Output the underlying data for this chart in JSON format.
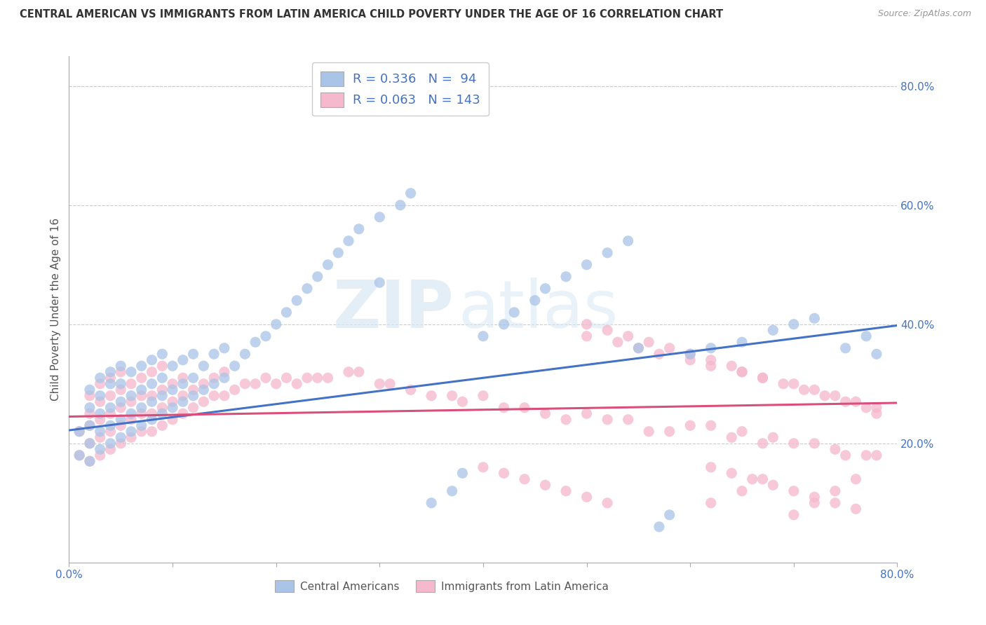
{
  "title": "CENTRAL AMERICAN VS IMMIGRANTS FROM LATIN AMERICA CHILD POVERTY UNDER THE AGE OF 16 CORRELATION CHART",
  "source": "Source: ZipAtlas.com",
  "ylabel": "Child Poverty Under the Age of 16",
  "xlim": [
    0.0,
    0.8
  ],
  "ylim": [
    0.0,
    0.85
  ],
  "blue_R": 0.336,
  "blue_N": 94,
  "pink_R": 0.063,
  "pink_N": 143,
  "blue_color": "#aac4e8",
  "pink_color": "#f5b8cc",
  "blue_line_color": "#4472c4",
  "pink_line_color": "#d94f7a",
  "watermark_zip": "ZIP",
  "watermark_atlas": "atlas",
  "legend_label_blue": "Central Americans",
  "legend_label_pink": "Immigrants from Latin America",
  "blue_scatter_x": [
    0.01,
    0.01,
    0.02,
    0.02,
    0.02,
    0.02,
    0.02,
    0.03,
    0.03,
    0.03,
    0.03,
    0.03,
    0.04,
    0.04,
    0.04,
    0.04,
    0.04,
    0.05,
    0.05,
    0.05,
    0.05,
    0.05,
    0.06,
    0.06,
    0.06,
    0.06,
    0.07,
    0.07,
    0.07,
    0.07,
    0.08,
    0.08,
    0.08,
    0.08,
    0.09,
    0.09,
    0.09,
    0.09,
    0.1,
    0.1,
    0.1,
    0.11,
    0.11,
    0.11,
    0.12,
    0.12,
    0.12,
    0.13,
    0.13,
    0.14,
    0.14,
    0.15,
    0.15,
    0.16,
    0.17,
    0.18,
    0.19,
    0.2,
    0.21,
    0.22,
    0.23,
    0.24,
    0.25,
    0.26,
    0.27,
    0.28,
    0.3,
    0.3,
    0.32,
    0.33,
    0.35,
    0.37,
    0.38,
    0.4,
    0.42,
    0.43,
    0.45,
    0.46,
    0.48,
    0.5,
    0.52,
    0.54,
    0.55,
    0.57,
    0.58,
    0.6,
    0.62,
    0.65,
    0.68,
    0.7,
    0.72,
    0.75,
    0.77,
    0.78
  ],
  "blue_scatter_y": [
    0.18,
    0.22,
    0.17,
    0.2,
    0.23,
    0.26,
    0.29,
    0.19,
    0.22,
    0.25,
    0.28,
    0.31,
    0.2,
    0.23,
    0.26,
    0.3,
    0.32,
    0.21,
    0.24,
    0.27,
    0.3,
    0.33,
    0.22,
    0.25,
    0.28,
    0.32,
    0.23,
    0.26,
    0.29,
    0.33,
    0.24,
    0.27,
    0.3,
    0.34,
    0.25,
    0.28,
    0.31,
    0.35,
    0.26,
    0.29,
    0.33,
    0.27,
    0.3,
    0.34,
    0.28,
    0.31,
    0.35,
    0.29,
    0.33,
    0.3,
    0.35,
    0.31,
    0.36,
    0.33,
    0.35,
    0.37,
    0.38,
    0.4,
    0.42,
    0.44,
    0.46,
    0.48,
    0.5,
    0.52,
    0.54,
    0.56,
    0.47,
    0.58,
    0.6,
    0.62,
    0.1,
    0.12,
    0.15,
    0.38,
    0.4,
    0.42,
    0.44,
    0.46,
    0.48,
    0.5,
    0.52,
    0.54,
    0.36,
    0.06,
    0.08,
    0.35,
    0.36,
    0.37,
    0.39,
    0.4,
    0.41,
    0.36,
    0.38,
    0.35
  ],
  "pink_scatter_x": [
    0.01,
    0.01,
    0.02,
    0.02,
    0.02,
    0.02,
    0.02,
    0.03,
    0.03,
    0.03,
    0.03,
    0.03,
    0.04,
    0.04,
    0.04,
    0.04,
    0.04,
    0.05,
    0.05,
    0.05,
    0.05,
    0.05,
    0.06,
    0.06,
    0.06,
    0.06,
    0.07,
    0.07,
    0.07,
    0.07,
    0.08,
    0.08,
    0.08,
    0.08,
    0.09,
    0.09,
    0.09,
    0.09,
    0.1,
    0.1,
    0.1,
    0.11,
    0.11,
    0.11,
    0.12,
    0.12,
    0.13,
    0.13,
    0.14,
    0.14,
    0.15,
    0.15,
    0.16,
    0.17,
    0.18,
    0.19,
    0.2,
    0.21,
    0.22,
    0.23,
    0.24,
    0.25,
    0.27,
    0.28,
    0.3,
    0.31,
    0.33,
    0.35,
    0.37,
    0.38,
    0.4,
    0.42,
    0.44,
    0.46,
    0.48,
    0.5,
    0.52,
    0.54,
    0.56,
    0.58,
    0.6,
    0.62,
    0.64,
    0.65,
    0.67,
    0.68,
    0.7,
    0.72,
    0.74,
    0.75,
    0.77,
    0.78,
    0.5,
    0.53,
    0.55,
    0.57,
    0.6,
    0.62,
    0.65,
    0.67,
    0.7,
    0.72,
    0.74,
    0.76,
    0.78,
    0.62,
    0.65,
    0.67,
    0.7,
    0.72,
    0.74,
    0.76,
    0.62,
    0.64,
    0.66,
    0.68,
    0.7,
    0.72,
    0.74,
    0.76,
    0.5,
    0.52,
    0.54,
    0.56,
    0.58,
    0.6,
    0.62,
    0.64,
    0.65,
    0.67,
    0.69,
    0.71,
    0.73,
    0.75,
    0.77,
    0.78,
    0.4,
    0.42,
    0.44,
    0.46,
    0.48,
    0.5,
    0.52
  ],
  "pink_scatter_y": [
    0.18,
    0.22,
    0.17,
    0.2,
    0.23,
    0.25,
    0.28,
    0.18,
    0.21,
    0.24,
    0.27,
    0.3,
    0.19,
    0.22,
    0.25,
    0.28,
    0.31,
    0.2,
    0.23,
    0.26,
    0.29,
    0.32,
    0.21,
    0.24,
    0.27,
    0.3,
    0.22,
    0.25,
    0.28,
    0.31,
    0.22,
    0.25,
    0.28,
    0.32,
    0.23,
    0.26,
    0.29,
    0.33,
    0.24,
    0.27,
    0.3,
    0.25,
    0.28,
    0.31,
    0.26,
    0.29,
    0.27,
    0.3,
    0.28,
    0.31,
    0.28,
    0.32,
    0.29,
    0.3,
    0.3,
    0.31,
    0.3,
    0.31,
    0.3,
    0.31,
    0.31,
    0.31,
    0.32,
    0.32,
    0.3,
    0.3,
    0.29,
    0.28,
    0.28,
    0.27,
    0.28,
    0.26,
    0.26,
    0.25,
    0.24,
    0.25,
    0.24,
    0.24,
    0.22,
    0.22,
    0.23,
    0.23,
    0.21,
    0.22,
    0.2,
    0.21,
    0.2,
    0.2,
    0.19,
    0.18,
    0.18,
    0.18,
    0.38,
    0.37,
    0.36,
    0.35,
    0.34,
    0.33,
    0.32,
    0.31,
    0.3,
    0.29,
    0.28,
    0.27,
    0.26,
    0.1,
    0.12,
    0.14,
    0.08,
    0.1,
    0.12,
    0.14,
    0.16,
    0.15,
    0.14,
    0.13,
    0.12,
    0.11,
    0.1,
    0.09,
    0.4,
    0.39,
    0.38,
    0.37,
    0.36,
    0.35,
    0.34,
    0.33,
    0.32,
    0.31,
    0.3,
    0.29,
    0.28,
    0.27,
    0.26,
    0.25,
    0.16,
    0.15,
    0.14,
    0.13,
    0.12,
    0.11,
    0.1
  ]
}
